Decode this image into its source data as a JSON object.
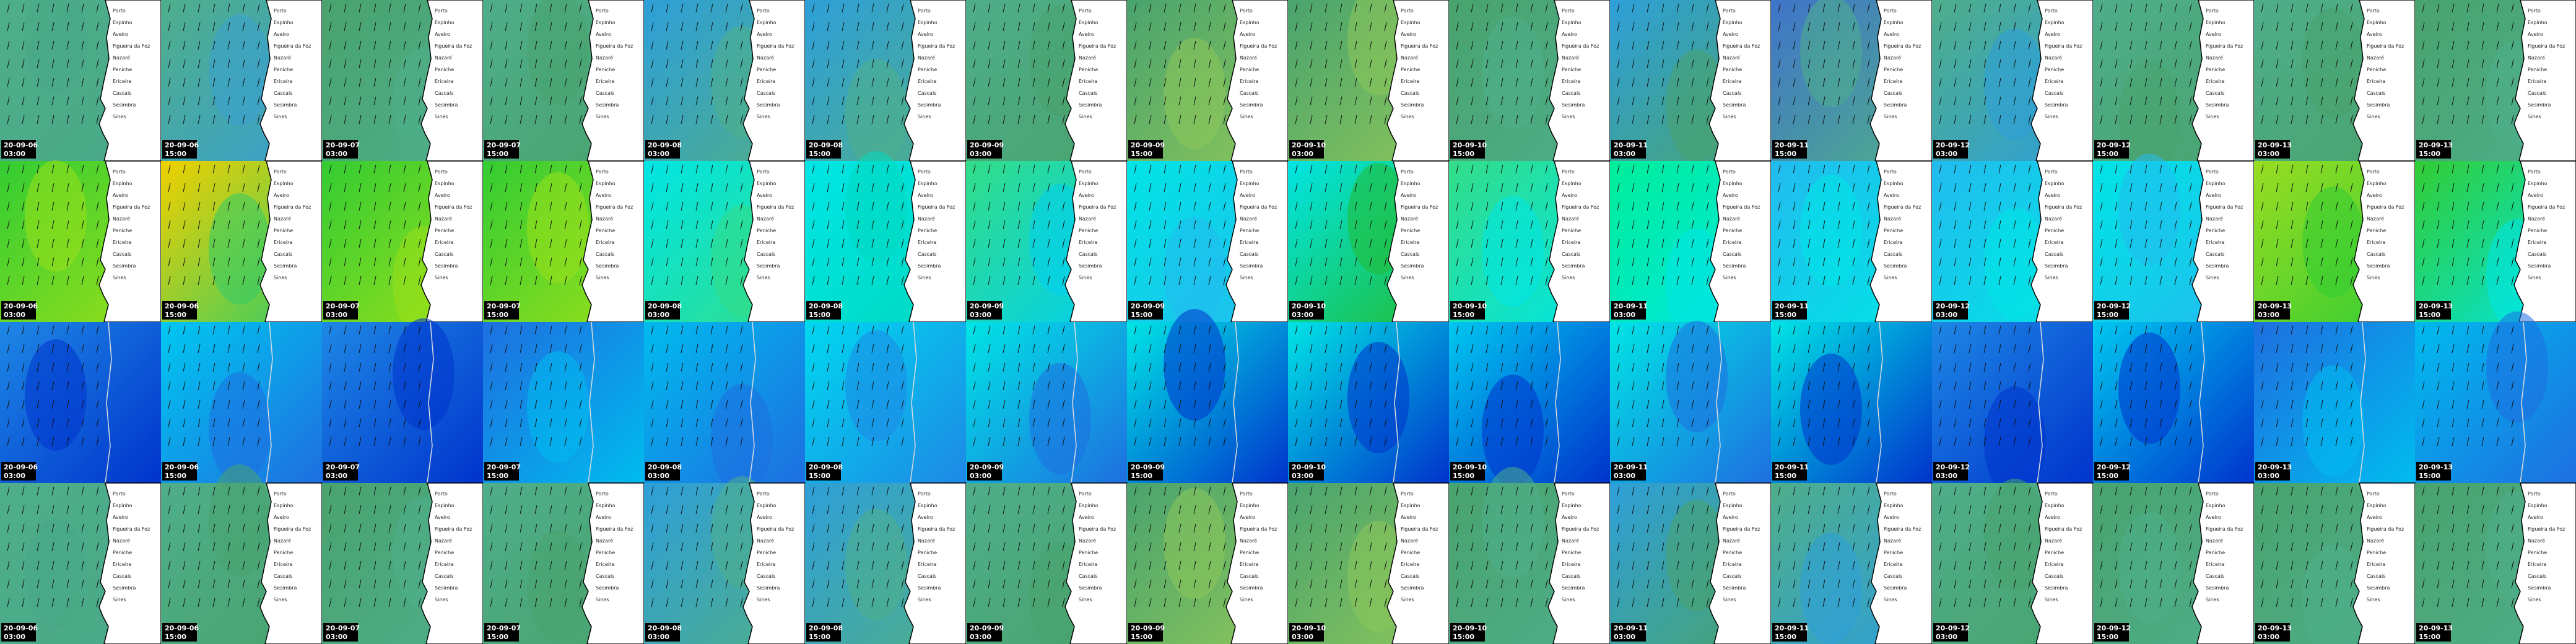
{
  "map_labels": [
    "Porto",
    "Espinho",
    "Aveiro",
    "Figueira da Foz",
    "Nazaré",
    "Peniche",
    "Ericeira",
    "Cascais",
    "Sesimbra",
    "Sines"
  ],
  "rows": [
    {
      "tiles": [
        {
          "date": "20-09-06",
          "time": "03:00",
          "colors": [
            "#4fae8a",
            "#49a887"
          ]
        },
        {
          "date": "20-09-06",
          "time": "15:00",
          "colors": [
            "#4fae8a",
            "#3aa0d0"
          ]
        },
        {
          "date": "20-09-07",
          "time": "03:00",
          "colors": [
            "#49a36e",
            "#4fae8a"
          ]
        },
        {
          "date": "20-09-07",
          "time": "15:00",
          "colors": [
            "#4fae8a",
            "#49a36e"
          ]
        },
        {
          "date": "20-09-08",
          "time": "03:00",
          "colors": [
            "#2e9fd9",
            "#4fae8a"
          ]
        },
        {
          "date": "20-09-08",
          "time": "15:00",
          "colors": [
            "#2e9fd9",
            "#4fae8a"
          ]
        },
        {
          "date": "20-09-09",
          "time": "03:00",
          "colors": [
            "#4fae8a",
            "#49a36e"
          ]
        },
        {
          "date": "20-09-09",
          "time": "15:00",
          "colors": [
            "#49a36e",
            "#8cc65a"
          ]
        },
        {
          "date": "20-09-10",
          "time": "03:00",
          "colors": [
            "#49a36e",
            "#8cc65a"
          ]
        },
        {
          "date": "20-09-10",
          "time": "15:00",
          "colors": [
            "#49a36e",
            "#4fae8a"
          ]
        },
        {
          "date": "20-09-11",
          "time": "03:00",
          "colors": [
            "#2e9fd9",
            "#49a36e"
          ]
        },
        {
          "date": "20-09-11",
          "time": "15:00",
          "colors": [
            "#3f74c9",
            "#4fae8a"
          ]
        },
        {
          "date": "20-09-12",
          "time": "03:00",
          "colors": [
            "#4fae8a",
            "#2e9fd9"
          ]
        },
        {
          "date": "20-09-12",
          "time": "15:00",
          "colors": [
            "#4fae8a",
            "#49a36e"
          ]
        },
        {
          "date": "20-09-13",
          "time": "03:00",
          "colors": [
            "#4fae8a",
            "#49a36e"
          ]
        },
        {
          "date": "20-09-13",
          "time": "15:00",
          "colors": [
            "#49a36e",
            "#4fae8a"
          ]
        }
      ]
    },
    {
      "tiles": [
        {
          "date": "20-09-06",
          "time": "03:00",
          "colors": [
            "#33cc33",
            "#99e01a"
          ]
        },
        {
          "date": "20-09-06",
          "time": "15:00",
          "colors": [
            "#f0d000",
            "#33cc66"
          ]
        },
        {
          "date": "20-09-07",
          "time": "03:00",
          "colors": [
            "#33cc33",
            "#99e01a"
          ]
        },
        {
          "date": "20-09-07",
          "time": "15:00",
          "colors": [
            "#33cc33",
            "#99e01a"
          ]
        },
        {
          "date": "20-09-08",
          "time": "03:00",
          "colors": [
            "#00e5e5",
            "#33dd88"
          ]
        },
        {
          "date": "20-09-08",
          "time": "15:00",
          "colors": [
            "#00e5e5",
            "#00d9c0"
          ]
        },
        {
          "date": "20-09-09",
          "time": "03:00",
          "colors": [
            "#33dd88",
            "#00d0f0"
          ]
        },
        {
          "date": "20-09-09",
          "time": "15:00",
          "colors": [
            "#00e5e5",
            "#22bbee"
          ]
        },
        {
          "date": "20-09-10",
          "time": "03:00",
          "colors": [
            "#00e5e5",
            "#22bb33"
          ]
        },
        {
          "date": "20-09-10",
          "time": "15:00",
          "colors": [
            "#33dd88",
            "#00e5e5"
          ]
        },
        {
          "date": "20-09-11",
          "time": "03:00",
          "colors": [
            "#00ee99",
            "#00e5e5"
          ]
        },
        {
          "date": "20-09-11",
          "time": "15:00",
          "colors": [
            "#22bbee",
            "#00e5e5"
          ]
        },
        {
          "date": "20-09-12",
          "time": "03:00",
          "colors": [
            "#22bbee",
            "#00e5e5"
          ]
        },
        {
          "date": "20-09-12",
          "time": "15:00",
          "colors": [
            "#00e5e5",
            "#22bbee"
          ]
        },
        {
          "date": "20-09-13",
          "time": "03:00",
          "colors": [
            "#99dd22",
            "#33cc33"
          ]
        },
        {
          "date": "20-09-13",
          "time": "15:00",
          "colors": [
            "#33cc33",
            "#00e5e5"
          ]
        }
      ]
    },
    {
      "tiles": [
        {
          "date": "20-09-06",
          "time": "03:00",
          "colors": [
            "#1e88e5",
            "#0033cc"
          ]
        },
        {
          "date": "20-09-06",
          "time": "15:00",
          "colors": [
            "#00c8f0",
            "#1e6fe0"
          ]
        },
        {
          "date": "20-09-07",
          "time": "03:00",
          "colors": [
            "#1e88e5",
            "#0033cc"
          ]
        },
        {
          "date": "20-09-07",
          "time": "15:00",
          "colors": [
            "#1e6fe0",
            "#00bbee"
          ]
        },
        {
          "date": "20-09-08",
          "time": "03:00",
          "colors": [
            "#00bbee",
            "#1e6fe0"
          ]
        },
        {
          "date": "20-09-08",
          "time": "15:00",
          "colors": [
            "#00d8f0",
            "#1e88e5"
          ]
        },
        {
          "date": "20-09-09",
          "time": "03:00",
          "colors": [
            "#00e5e5",
            "#1e6fe0"
          ]
        },
        {
          "date": "20-09-09",
          "time": "15:00",
          "colors": [
            "#00e5e5",
            "#0033cc"
          ]
        },
        {
          "date": "20-09-10",
          "time": "03:00",
          "colors": [
            "#00e5e5",
            "#0033cc"
          ]
        },
        {
          "date": "20-09-10",
          "time": "15:00",
          "colors": [
            "#00c8f0",
            "#0033cc"
          ]
        },
        {
          "date": "20-09-11",
          "time": "03:00",
          "colors": [
            "#00e5e5",
            "#1e6fe0"
          ]
        },
        {
          "date": "20-09-11",
          "time": "15:00",
          "colors": [
            "#00e5e5",
            "#0033cc"
          ]
        },
        {
          "date": "20-09-12",
          "time": "03:00",
          "colors": [
            "#1e88e5",
            "#0033cc"
          ]
        },
        {
          "date": "20-09-12",
          "time": "15:00",
          "colors": [
            "#00c8f0",
            "#0033cc"
          ]
        },
        {
          "date": "20-09-13",
          "time": "03:00",
          "colors": [
            "#1e6fe0",
            "#00bbee"
          ]
        },
        {
          "date": "20-09-13",
          "time": "15:00",
          "colors": [
            "#00bbee",
            "#1e6fe0"
          ]
        }
      ]
    },
    {
      "tiles": [
        {
          "date": "20-09-06",
          "time": "03:00",
          "colors": [
            "#4fae8a",
            "#49a887"
          ]
        },
        {
          "date": "20-09-06",
          "time": "15:00",
          "colors": [
            "#4fae8a",
            "#49a36e"
          ]
        },
        {
          "date": "20-09-07",
          "time": "03:00",
          "colors": [
            "#49a36e",
            "#4fae8a"
          ]
        },
        {
          "date": "20-09-07",
          "time": "15:00",
          "colors": [
            "#4fae8a",
            "#49a36e"
          ]
        },
        {
          "date": "20-09-08",
          "time": "03:00",
          "colors": [
            "#2e9fd9",
            "#4fae8a"
          ]
        },
        {
          "date": "20-09-08",
          "time": "15:00",
          "colors": [
            "#2e9fd9",
            "#4fae8a"
          ]
        },
        {
          "date": "20-09-09",
          "time": "03:00",
          "colors": [
            "#4fae8a",
            "#49a36e"
          ]
        },
        {
          "date": "20-09-09",
          "time": "15:00",
          "colors": [
            "#49a36e",
            "#8cc65a"
          ]
        },
        {
          "date": "20-09-10",
          "time": "03:00",
          "colors": [
            "#49a36e",
            "#8cc65a"
          ]
        },
        {
          "date": "20-09-10",
          "time": "15:00",
          "colors": [
            "#49a36e",
            "#4fae8a"
          ]
        },
        {
          "date": "20-09-11",
          "time": "03:00",
          "colors": [
            "#2e9fd9",
            "#49a36e"
          ]
        },
        {
          "date": "20-09-11",
          "time": "15:00",
          "colors": [
            "#4fae8a",
            "#2e9fd9"
          ]
        },
        {
          "date": "20-09-12",
          "time": "03:00",
          "colors": [
            "#4fae8a",
            "#49a36e"
          ]
        },
        {
          "date": "20-09-12",
          "time": "15:00",
          "colors": [
            "#49a36e",
            "#4fae8a"
          ]
        },
        {
          "date": "20-09-13",
          "time": "03:00",
          "colors": [
            "#49a36e",
            "#4fae8a"
          ]
        },
        {
          "date": "20-09-13",
          "time": "15:00",
          "colors": [
            "#49a36e",
            "#4fae8a"
          ]
        }
      ]
    }
  ]
}
